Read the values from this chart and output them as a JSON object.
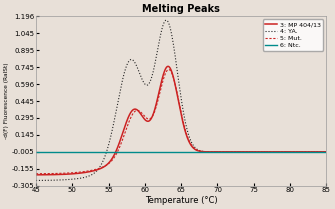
{
  "title": "Melting Peaks",
  "xlabel": "Temperature (°C)",
  "ylabel": "-d(F) Fluorescence (RalSt)",
  "xlim": [
    45,
    85
  ],
  "ylim": [
    -0.305,
    1.196
  ],
  "yticks": [
    -0.305,
    -0.155,
    -0.005,
    0.145,
    0.295,
    0.445,
    0.596,
    0.745,
    0.895,
    1.045,
    1.196
  ],
  "xticks": [
    45,
    50,
    55,
    60,
    65,
    70,
    75,
    80,
    85
  ],
  "background_color": "#e8e0d8",
  "plot_bg": "#e8e0d8",
  "legend_labels": [
    "3: MP 404/13",
    "4: YA.",
    "5: Mut.",
    "6: Ntc."
  ],
  "title_fontsize": 7,
  "axis_fontsize": 6,
  "tick_fontsize": 5,
  "legend_fontsize": 4.5
}
